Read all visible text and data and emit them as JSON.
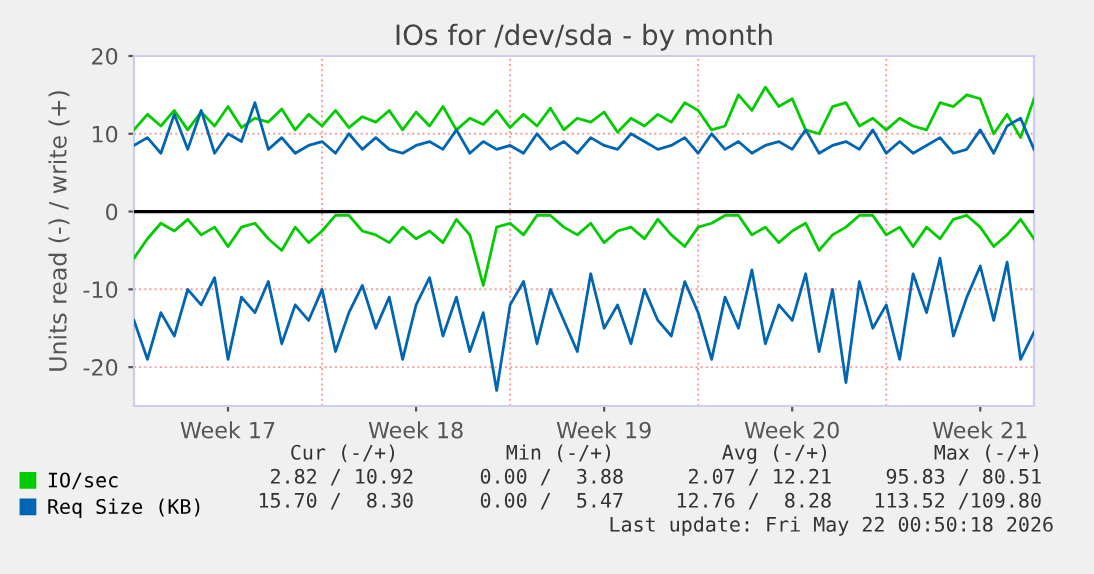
{
  "chart_data": {
    "type": "line",
    "title": "IOs for /dev/sda - by month",
    "ylabel": "Units read (-) / write (+)",
    "categories": [
      null,
      null,
      null,
      null,
      null,
      null,
      null,
      "Week 17",
      null,
      null,
      null,
      null,
      null,
      null,
      null,
      null,
      null,
      null,
      null,
      null,
      null,
      "Week 18",
      null,
      null,
      null,
      null,
      null,
      null,
      null,
      null,
      null,
      null,
      null,
      null,
      null,
      "Week 19",
      null,
      null,
      null,
      null,
      null,
      null,
      null,
      null,
      null,
      null,
      null,
      null,
      null,
      "Week 20",
      null,
      null,
      null,
      null,
      null,
      null,
      null,
      null,
      null,
      null,
      null,
      null,
      null,
      "Week 21",
      null,
      null,
      null,
      null
    ],
    "series": [
      {
        "name": "IO/sec",
        "color": "#00cc00",
        "values": [
          10.5,
          12.5,
          11,
          13,
          10.5,
          12.8,
          11,
          13.5,
          10.8,
          12,
          11.5,
          13.2,
          10.5,
          12.5,
          11,
          13,
          10.8,
          12.2,
          11.5,
          13,
          10.5,
          12.8,
          11,
          13.5,
          10.5,
          12,
          11.2,
          13,
          10.8,
          12.5,
          11,
          13.3,
          10.5,
          12,
          11.5,
          12.8,
          10.2,
          12,
          11,
          12.5,
          11.5,
          14,
          13,
          10.5,
          11,
          15,
          13,
          16,
          13.5,
          14.5,
          10.5,
          10,
          13.5,
          14,
          11,
          12,
          10.5,
          12,
          11,
          10.5,
          14,
          13.5,
          15,
          14.5,
          10,
          12.5,
          9.5,
          14.5
        ]
      },
      {
        "color": "#00cc00",
        "values": [
          -6,
          -3.5,
          -1.5,
          -2.5,
          -1,
          -3,
          -2,
          -4.5,
          -2,
          -1.5,
          -3.5,
          -5,
          -2,
          -4,
          -2.5,
          -0.5,
          -0.5,
          -2.5,
          -3,
          -4,
          -2,
          -3.5,
          -2.5,
          -4,
          -1,
          -3,
          -9.5,
          -2,
          -1.5,
          -3,
          -0.5,
          -0.5,
          -2,
          -3,
          -1.5,
          -4,
          -2.5,
          -2,
          -3.5,
          -1,
          -3,
          -4.5,
          -2,
          -1.5,
          -0.5,
          -0.5,
          -3,
          -2,
          -4,
          -2.5,
          -1.5,
          -5,
          -3,
          -2,
          -0.5,
          -0.5,
          -3,
          -2,
          -4.5,
          -2,
          -3.5,
          -1,
          -0.5,
          -2,
          -4.5,
          -3,
          -1,
          -3.5
        ]
      },
      {
        "name": "Req Size (KB)",
        "color": "#0066b3",
        "values": [
          8.5,
          9.5,
          7.5,
          12.5,
          8,
          13,
          7.5,
          10,
          9,
          14,
          8,
          9.5,
          7.5,
          8.5,
          9,
          7.5,
          10,
          8,
          9.5,
          8,
          7.5,
          8.5,
          9,
          8,
          10.5,
          7.5,
          9,
          8,
          8.5,
          7.5,
          10,
          8,
          9,
          7.5,
          9.5,
          8.5,
          8,
          10,
          9,
          8,
          8.5,
          9.5,
          7.5,
          10,
          8,
          9,
          7.5,
          8.5,
          9,
          8,
          10.5,
          7.5,
          8.5,
          9,
          8,
          10.5,
          7.5,
          9,
          7.5,
          8.5,
          9.5,
          7.5,
          8,
          10.5,
          7.5,
          11,
          12,
          8
        ]
      },
      {
        "color": "#0066b3",
        "values": [
          -14,
          -19,
          -13,
          -16,
          -10,
          -12,
          -8.5,
          -19,
          -11,
          -13,
          -9,
          -17,
          -12,
          -14,
          -10,
          -18,
          -13,
          -9.5,
          -15,
          -11,
          -19,
          -12,
          -8.5,
          -16,
          -11,
          -18,
          -13,
          -23,
          -12,
          -9,
          -17,
          -10,
          -14,
          -18,
          -8,
          -15,
          -12,
          -17,
          -10,
          -14,
          -16,
          -9,
          -13,
          -19,
          -11,
          -15,
          -7.5,
          -17,
          -12,
          -14,
          -8,
          -18,
          -10,
          -22,
          -9,
          -15,
          -12,
          -19,
          -8,
          -13,
          -6,
          -16,
          -11,
          -7,
          -14,
          -6.5,
          -19,
          -15.5
        ]
      }
    ],
    "ylim": [
      -25,
      20
    ],
    "yticks": [
      -20,
      -10,
      0,
      10,
      20
    ],
    "ref_lines": [
      {
        "axis": "y",
        "value": 0,
        "color": "#000000"
      }
    ],
    "grid": true,
    "legend": "bottom",
    "line_style": "solid",
    "marker": "none",
    "annotations": [
      "Cur (-/+)",
      "Min (-/+)",
      "Avg (-/+)",
      "Max (-/+)",
      "2.82 / 10.92",
      "0.00 /  3.88",
      "2.07 / 12.21",
      "95.83 / 80.51",
      "15.70 /  8.30",
      "0.00 /  5.47",
      "12.76 /  8.28",
      "113.52 /109.80",
      "Last update: Fri May 22 00:50:18 2026"
    ]
  }
}
